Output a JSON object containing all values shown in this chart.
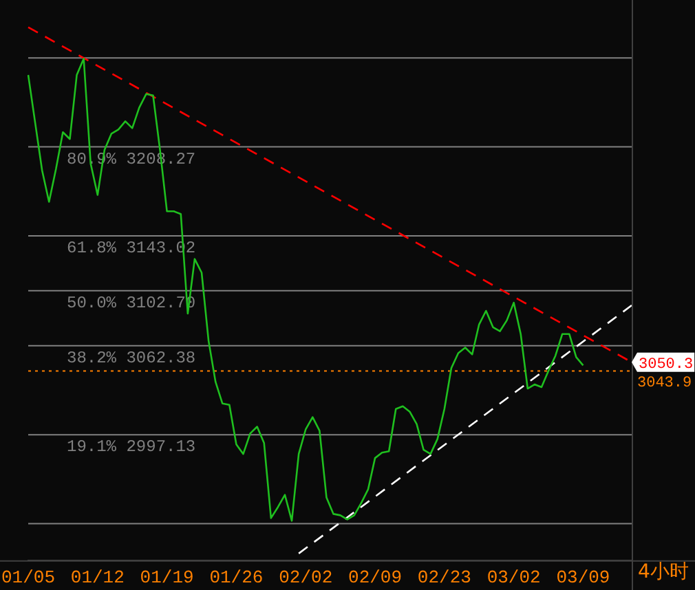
{
  "chart_data": {
    "type": "line",
    "categories": [
      "01/05",
      null,
      null,
      null,
      null,
      null,
      null,
      null,
      null,
      null,
      "01/12",
      null,
      null,
      null,
      null,
      null,
      null,
      null,
      null,
      null,
      "01/19",
      null,
      null,
      null,
      null,
      null,
      null,
      null,
      null,
      null,
      "01/26",
      null,
      null,
      null,
      null,
      null,
      null,
      null,
      null,
      null,
      "02/02",
      null,
      null,
      null,
      null,
      null,
      null,
      null,
      null,
      null,
      "02/09",
      null,
      null,
      null,
      null,
      null,
      null,
      null,
      null,
      null,
      "02/23",
      null,
      null,
      null,
      null,
      null,
      null,
      null,
      null,
      null,
      "03/02",
      null,
      null,
      null,
      null,
      null,
      null,
      null,
      null,
      null,
      "03/09",
      null,
      null,
      null,
      null,
      null,
      null,
      null
    ],
    "series": [
      {
        "color": "#1fbf1f",
        "values": [
          3261,
          3226,
          3191,
          3168,
          3192,
          3219,
          3214,
          3261,
          3273,
          3196,
          3173,
          3206,
          3218,
          3221,
          3227,
          3222,
          3237,
          3247,
          3246,
          3206,
          3161,
          3161,
          3159,
          3086,
          3126,
          3116,
          3066,
          3036,
          3020,
          3019,
          2990,
          2983,
          2998,
          3003,
          2991,
          2936,
          2944,
          2953,
          2934,
          2983,
          3001,
          3010,
          3000,
          2951,
          2939,
          2938,
          2935,
          2938,
          2947,
          2957,
          2980,
          2984,
          2985,
          3016,
          3018,
          3014,
          3005,
          2986,
          2983,
          2994,
          3016,
          3046,
          3057,
          3061,
          3056,
          3078,
          3088,
          3076,
          3073,
          3081,
          3094,
          3071,
          3031,
          3034,
          3032,
          3044,
          3055,
          3071,
          3071,
          3054,
          3048,
          null,
          null,
          null,
          null,
          null,
          null,
          null
        ]
      },
      {
        "color": "#ff0000",
        "line_style": "dashed",
        "values": [
          3296,
          null,
          null,
          null,
          null,
          null,
          null,
          null,
          null,
          null,
          null,
          null,
          null,
          null,
          null,
          null,
          null,
          null,
          null,
          null,
          null,
          null,
          null,
          null,
          null,
          null,
          null,
          null,
          null,
          null,
          null,
          null,
          null,
          null,
          null,
          null,
          null,
          null,
          null,
          null,
          null,
          null,
          null,
          null,
          null,
          null,
          null,
          null,
          null,
          null,
          null,
          null,
          null,
          null,
          null,
          null,
          null,
          null,
          null,
          null,
          null,
          null,
          null,
          null,
          null,
          null,
          null,
          null,
          null,
          null,
          null,
          null,
          null,
          null,
          null,
          null,
          null,
          null,
          null,
          null,
          null,
          null,
          null,
          null,
          null,
          null,
          null,
          3050.3
        ]
      },
      {
        "color": "#ffffff",
        "line_style": "dashed",
        "values": [
          null,
          null,
          null,
          null,
          null,
          null,
          null,
          null,
          null,
          null,
          null,
          null,
          null,
          null,
          null,
          null,
          null,
          null,
          null,
          null,
          null,
          null,
          null,
          null,
          null,
          null,
          null,
          null,
          null,
          null,
          null,
          null,
          null,
          null,
          null,
          null,
          null,
          null,
          null,
          2910,
          null,
          null,
          null,
          null,
          null,
          null,
          null,
          null,
          null,
          null,
          null,
          null,
          null,
          null,
          null,
          null,
          null,
          null,
          null,
          null,
          null,
          null,
          null,
          null,
          null,
          null,
          null,
          null,
          null,
          null,
          null,
          null,
          null,
          null,
          null,
          null,
          null,
          null,
          null,
          null,
          null,
          null,
          null,
          null,
          null,
          null,
          null,
          3092
        ]
      }
    ],
    "ylim": [
      2905,
      3316
    ],
    "tick_labels": "x",
    "grid": false,
    "legend": false,
    "marker": "none",
    "ref_lines": [
      {
        "axis": "y",
        "value": 3273.53,
        "color": "#808080"
      },
      {
        "axis": "y",
        "value": 3208.27,
        "label": "80.9% 3208.27",
        "color": "#808080"
      },
      {
        "axis": "y",
        "value": 3143.02,
        "label": "61.8% 3143.02",
        "color": "#808080"
      },
      {
        "axis": "y",
        "value": 3102.7,
        "label": "50.0% 3102.70",
        "color": "#808080"
      },
      {
        "axis": "y",
        "value": 3062.38,
        "label": "38.2% 3062.38",
        "color": "#808080"
      },
      {
        "axis": "y",
        "value": 2997.13,
        "label": "19.1% 2997.13",
        "color": "#808080"
      },
      {
        "axis": "y",
        "value": 2931.88,
        "color": "#808080"
      },
      {
        "axis": "y",
        "value": 3043.9,
        "label": "3043.9",
        "color": "#ff8000",
        "line_style": "dotted"
      }
    ],
    "annotations": [
      "3050.3",
      "4小时"
    ]
  }
}
